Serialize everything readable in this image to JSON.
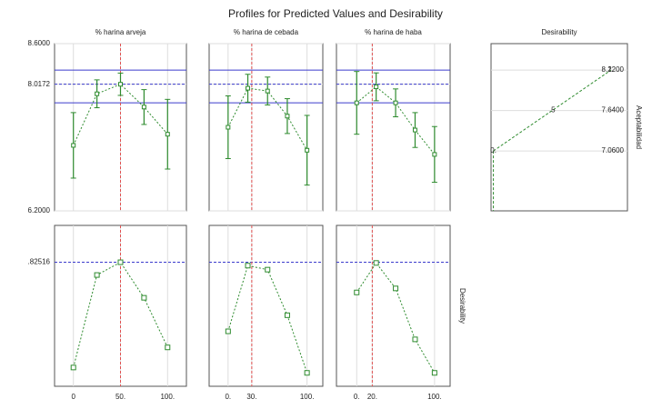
{
  "chart_data": {
    "type": "profile",
    "title": "Profiles for Predicted Values and Desirability",
    "ylim": [
      6.2,
      8.6
    ],
    "yticks": [
      {
        "value": 8.6,
        "label": "8.6000"
      },
      {
        "value": 8.0172,
        "label": "8.0172"
      },
      {
        "value": 6.2,
        "label": "6.2000"
      }
    ],
    "ci": [
      7.75,
      8.22
    ],
    "grid": true,
    "color": "#2e8b2e",
    "ci_color": "#3b3bcc",
    "current_color": "#e05050",
    "factors": [
      {
        "name": "% harina arveja",
        "xlim": [
          -20,
          120
        ],
        "x": [
          0,
          25,
          50,
          75,
          100
        ],
        "values": [
          7.14,
          7.88,
          8.0172,
          7.69,
          7.3
        ],
        "errors": [
          0.47,
          0.2,
          0.16,
          0.25,
          0.5
        ],
        "desirability": [
          0.04,
          0.73,
          0.82516,
          0.56,
          0.19
        ],
        "xticks": [
          {
            "value": 0,
            "label": "0"
          },
          {
            "value": 50,
            "label": "50."
          },
          {
            "value": 100,
            "label": "100."
          }
        ],
        "current_tick": 1
      },
      {
        "name": "% harina de cebada",
        "xlim": [
          -24,
          120
        ],
        "x": [
          0,
          25,
          50,
          75,
          100
        ],
        "values": [
          7.4,
          7.96,
          7.92,
          7.56,
          7.07
        ],
        "errors": [
          0.45,
          0.2,
          0.2,
          0.25,
          0.5
        ],
        "desirability": [
          0.31,
          0.8,
          0.77,
          0.43,
          0.0
        ],
        "xticks": [
          {
            "value": 0,
            "label": "0."
          },
          {
            "value": 30,
            "label": "30."
          },
          {
            "value": 100,
            "label": "100."
          }
        ],
        "current_tick": 1
      },
      {
        "name": "% harina de haba",
        "xlim": [
          -26,
          120
        ],
        "x": [
          0,
          25,
          50,
          75,
          100
        ],
        "values": [
          7.75,
          7.98,
          7.75,
          7.36,
          7.01
        ],
        "errors": [
          0.45,
          0.2,
          0.2,
          0.25,
          0.4
        ],
        "desirability": [
          0.6,
          0.82,
          0.63,
          0.25,
          0.0
        ],
        "xticks": [
          {
            "value": 0,
            "label": "0."
          },
          {
            "value": 20,
            "label": "20."
          },
          {
            "value": 100,
            "label": "100."
          }
        ],
        "current_tick": 1
      }
    ],
    "desirability_panel": {
      "title": "Desirability",
      "y_label": "Aceptabilidad",
      "xlim": [
        -0.02,
        1.14
      ],
      "x": [
        0,
        0.5,
        1
      ],
      "values": [
        7.06,
        7.64,
        8.22
      ],
      "value_labels": [
        "0.",
        ".5",
        "1."
      ],
      "yticks": [
        {
          "value": 8.22,
          "label": "8.2200"
        },
        {
          "value": 7.64,
          "label": "7.6400"
        },
        {
          "value": 7.06,
          "label": "7.0600"
        }
      ]
    },
    "bottom": {
      "y_label": "Desirability",
      "ylim": [
        -0.1,
        1.1
      ],
      "yticks": [
        {
          "value": 0.82516,
          "label": ".82516"
        }
      ]
    }
  }
}
